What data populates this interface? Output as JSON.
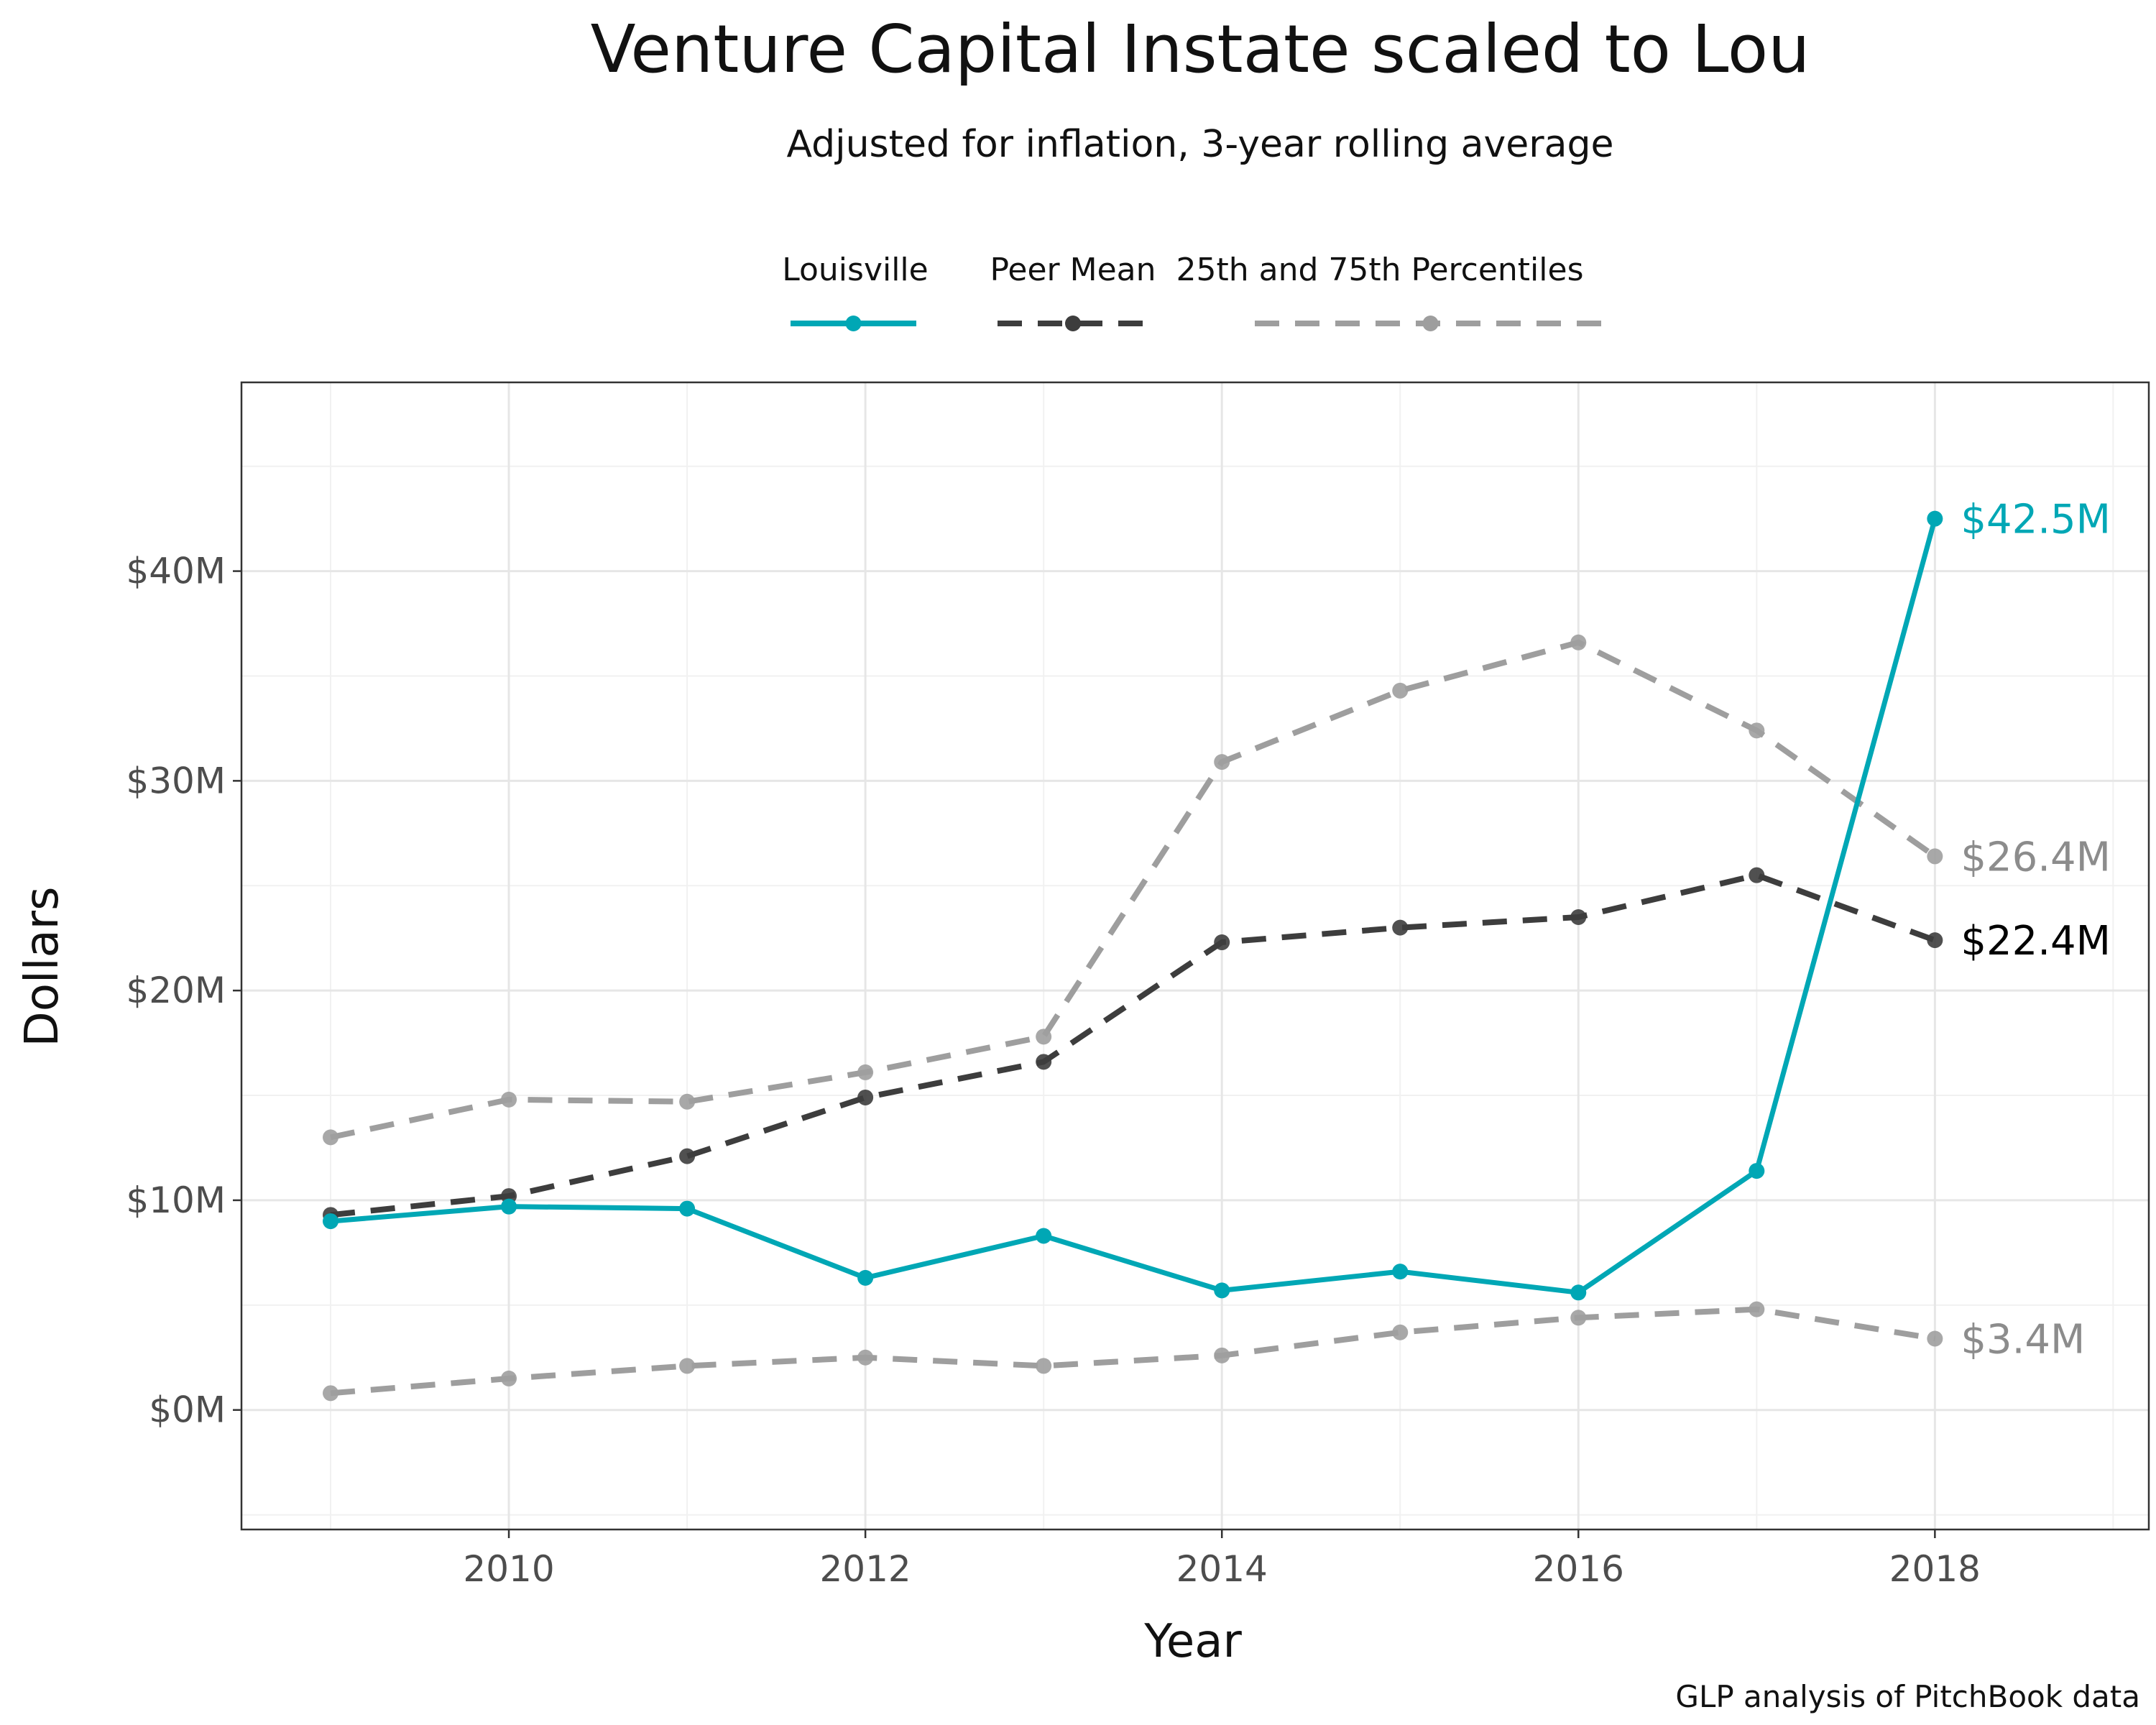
{
  "chart_data": {
    "type": "line",
    "title": "Venture Capital Instate scaled to Lou",
    "subtitle": "Adjusted for inflation, 3-year rolling average",
    "xlabel": "Year",
    "ylabel": "Dollars",
    "caption": "GLP analysis of PitchBook data",
    "x": [
      2009,
      2010,
      2011,
      2012,
      2013,
      2014,
      2015,
      2016,
      2017,
      2018
    ],
    "xlim": [
      2008.5,
      2019.2
    ],
    "ylim": [
      -5.7,
      49
    ],
    "x_ticks": [
      2010,
      2012,
      2014,
      2016,
      2018
    ],
    "x_tick_labels": [
      "2010",
      "2012",
      "2014",
      "2016",
      "2018"
    ],
    "y_ticks": [
      0,
      10,
      20,
      30,
      40
    ],
    "y_tick_labels": [
      "$0M",
      "$10M",
      "$20M",
      "$30M",
      "$40M"
    ],
    "grid": true,
    "legend_position": "top",
    "legend": [
      {
        "label": "Louisville",
        "color": "#00a7b5",
        "dash": "solid"
      },
      {
        "label": "Peer Mean",
        "color": "#3d3d3d",
        "dash": "dashed"
      },
      {
        "label": "25th and 75th Percentiles",
        "color": "#9e9e9e",
        "dash": "dashed"
      }
    ],
    "series": [
      {
        "group": "percentile",
        "color": "#9e9e9e",
        "dash": "dashed",
        "values": [
          13.0,
          14.8,
          14.7,
          16.1,
          17.8,
          30.9,
          34.3,
          36.6,
          32.4,
          26.4
        ]
      },
      {
        "group": "percentile",
        "color": "#9e9e9e",
        "dash": "dashed",
        "values": [
          0.8,
          1.5,
          2.1,
          2.5,
          2.1,
          2.6,
          3.7,
          4.4,
          4.8,
          3.4
        ]
      },
      {
        "name": "Peer Mean",
        "color": "#3d3d3d",
        "dash": "dashed",
        "values": [
          9.3,
          10.2,
          12.1,
          14.9,
          16.6,
          22.3,
          23.0,
          23.5,
          25.5,
          22.4
        ]
      },
      {
        "name": "Louisville",
        "color": "#00a7b5",
        "dash": "solid",
        "values": [
          9.0,
          9.7,
          9.6,
          6.3,
          8.3,
          5.7,
          6.6,
          5.6,
          11.4,
          42.5
        ]
      }
    ],
    "end_labels": [
      {
        "text": "$42.5M",
        "value": 42.5,
        "color": "#00a7b5"
      },
      {
        "text": "$26.4M",
        "value": 26.4,
        "color": "#8c8c8c"
      },
      {
        "text": "$22.4M",
        "value": 22.4,
        "color": "#000000"
      },
      {
        "text": "$3.4M",
        "value": 3.4,
        "color": "#8c8c8c"
      }
    ]
  }
}
